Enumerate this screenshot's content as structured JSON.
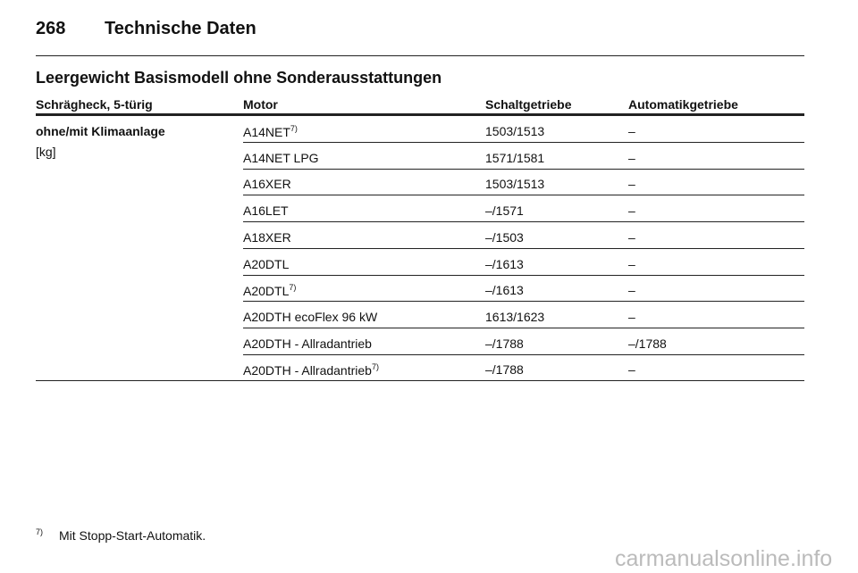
{
  "header": {
    "page_number": "268",
    "title": "Technische Daten"
  },
  "section_title": "Leergewicht Basismodell ohne Sonderausstattungen",
  "table": {
    "columns": [
      "Schrägheck, 5-türig",
      "Motor",
      "Schaltgetriebe",
      "Automatikgetriebe"
    ],
    "row_label": [
      "ohne/mit Klimaanlage",
      "[kg]"
    ],
    "rows": [
      {
        "motor": "A14NET",
        "note": "7)",
        "manual": "1503/1513",
        "automatic": "–"
      },
      {
        "motor": "A14NET LPG",
        "manual": "1571/1581",
        "automatic": "–"
      },
      {
        "motor": "A16XER",
        "manual": "1503/1513",
        "automatic": "–"
      },
      {
        "motor": "A16LET",
        "manual": "–/1571",
        "automatic": "–"
      },
      {
        "motor": "A18XER",
        "manual": "–/1503",
        "automatic": "–"
      },
      {
        "motor": "A20DTL",
        "manual": "–/1613",
        "automatic": "–"
      },
      {
        "motor": "A20DTL",
        "note": "7)",
        "manual": "–/1613",
        "automatic": "–"
      },
      {
        "motor": "A20DTH ecoFlex 96 kW",
        "manual": "1613/1623",
        "automatic": "–"
      },
      {
        "motor": "A20DTH - Allradantrieb",
        "manual": "–/1788",
        "automatic": "–/1788"
      },
      {
        "motor": "A20DTH - Allradantrieb",
        "note": "7)",
        "manual": "–/1788",
        "automatic": "–"
      }
    ]
  },
  "footnote": {
    "mark": "7)",
    "text": "Mit Stopp-Start-Automatik."
  },
  "watermark": "carmanualsonline.info"
}
